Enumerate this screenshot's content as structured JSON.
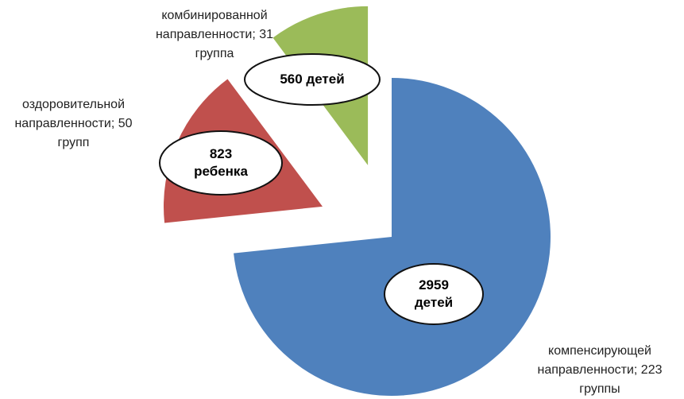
{
  "chart_data": {
    "type": "pie",
    "values": [
      223,
      50,
      31
    ],
    "value_labels": [
      "компенсирующей направленности; 223 группы",
      "оздоровительной направленности; 50 групп",
      "комбинированной направленности; 31 группа"
    ],
    "annotations": [
      "2959 детей",
      "823 ребенка",
      "560 детей"
    ],
    "colors": [
      "#4f81bd",
      "#c0504d",
      "#9bbb59"
    ],
    "start_angle": 0,
    "direction": "clockwise",
    "exploded": true
  }
}
